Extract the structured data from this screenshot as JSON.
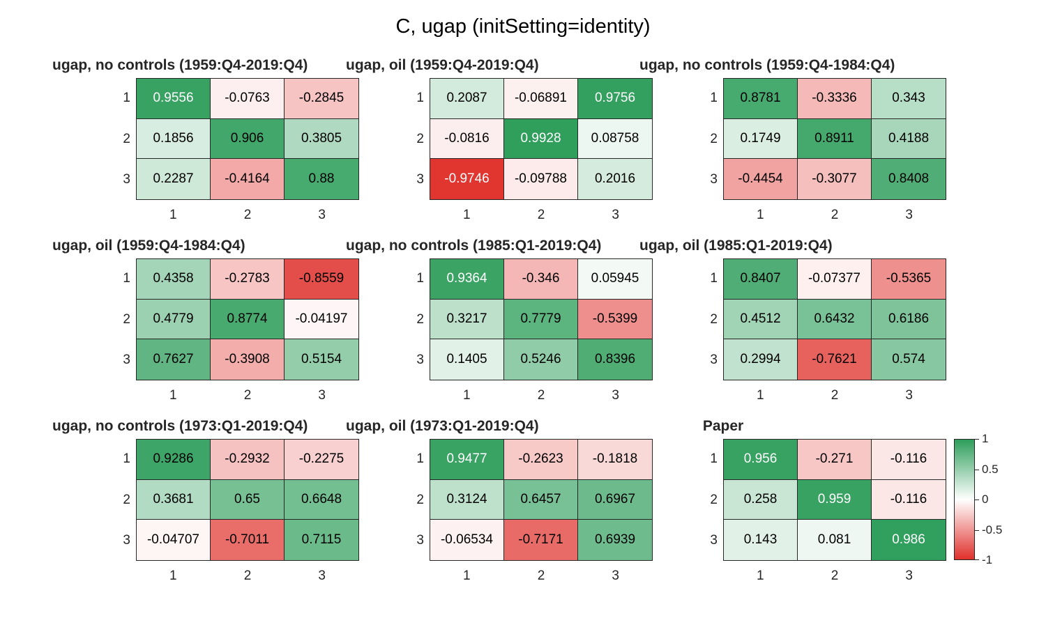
{
  "figure_title": "C, ugap (initSetting=identity)",
  "chart_data": {
    "type": "heatmap",
    "colormap": {
      "low": "#e0302b",
      "mid": "#ffffff",
      "high": "#2e9e5b",
      "range": [
        -1,
        1
      ]
    },
    "colorbar": {
      "ticks": [
        1,
        0.5,
        0,
        -0.5,
        -1
      ],
      "labels": [
        "1",
        "0.5",
        "0",
        "-0.5",
        "-1"
      ]
    },
    "row_labels": [
      "1",
      "2",
      "3"
    ],
    "col_labels": [
      "1",
      "2",
      "3"
    ],
    "panels": [
      {
        "title": "ugap, no controls (1959:Q4-2019:Q4)",
        "values": [
          [
            0.9556,
            -0.0763,
            -0.2845
          ],
          [
            0.1856,
            0.906,
            0.3805
          ],
          [
            0.2287,
            -0.4164,
            0.88
          ]
        ],
        "labels": [
          [
            "0.9556",
            "-0.0763",
            "-0.2845"
          ],
          [
            "0.1856",
            "0.906",
            "0.3805"
          ],
          [
            "0.2287",
            "-0.4164",
            "0.88"
          ]
        ]
      },
      {
        "title": "ugap, oil (1959:Q4-2019:Q4)",
        "values": [
          [
            0.2087,
            -0.06891,
            0.9756
          ],
          [
            -0.0816,
            0.9928,
            0.08758
          ],
          [
            -0.9746,
            -0.09788,
            0.2016
          ]
        ],
        "labels": [
          [
            "0.2087",
            "-0.06891",
            "0.9756"
          ],
          [
            "-0.0816",
            "0.9928",
            "0.08758"
          ],
          [
            "-0.9746",
            "-0.09788",
            "0.2016"
          ]
        ]
      },
      {
        "title": "ugap, no controls (1959:Q4-1984:Q4)",
        "values": [
          [
            0.8781,
            -0.3336,
            0.343
          ],
          [
            0.1749,
            0.8911,
            0.4188
          ],
          [
            -0.4454,
            -0.3077,
            0.8408
          ]
        ],
        "labels": [
          [
            "0.8781",
            "-0.3336",
            "0.343"
          ],
          [
            "0.1749",
            "0.8911",
            "0.4188"
          ],
          [
            "-0.4454",
            "-0.3077",
            "0.8408"
          ]
        ]
      },
      {
        "title": "ugap, oil (1959:Q4-1984:Q4)",
        "values": [
          [
            0.4358,
            -0.2783,
            -0.8559
          ],
          [
            0.4779,
            0.8774,
            -0.04197
          ],
          [
            0.7627,
            -0.3908,
            0.5154
          ]
        ],
        "labels": [
          [
            "0.4358",
            "-0.2783",
            "-0.8559"
          ],
          [
            "0.4779",
            "0.8774",
            "-0.04197"
          ],
          [
            "0.7627",
            "-0.3908",
            "0.5154"
          ]
        ]
      },
      {
        "title": "ugap, no controls (1985:Q1-2019:Q4)",
        "values": [
          [
            0.9364,
            -0.346,
            0.05945
          ],
          [
            0.3217,
            0.7779,
            -0.5399
          ],
          [
            0.1405,
            0.5246,
            0.8396
          ]
        ],
        "labels": [
          [
            "0.9364",
            "-0.346",
            "0.05945"
          ],
          [
            "0.3217",
            "0.7779",
            "-0.5399"
          ],
          [
            "0.1405",
            "0.5246",
            "0.8396"
          ]
        ]
      },
      {
        "title": "ugap, oil (1985:Q1-2019:Q4)",
        "values": [
          [
            0.8407,
            -0.07377,
            -0.5365
          ],
          [
            0.4512,
            0.6432,
            0.6186
          ],
          [
            0.2994,
            -0.7621,
            0.574
          ]
        ],
        "labels": [
          [
            "0.8407",
            "-0.07377",
            "-0.5365"
          ],
          [
            "0.4512",
            "0.6432",
            "0.6186"
          ],
          [
            "0.2994",
            "-0.7621",
            "0.574"
          ]
        ]
      },
      {
        "title": "ugap, no controls (1973:Q1-2019:Q4)",
        "values": [
          [
            0.9286,
            -0.2932,
            -0.2275
          ],
          [
            0.3681,
            0.65,
            0.6648
          ],
          [
            -0.04707,
            -0.7011,
            0.7115
          ]
        ],
        "labels": [
          [
            "0.9286",
            "-0.2932",
            "-0.2275"
          ],
          [
            "0.3681",
            "0.65",
            "0.6648"
          ],
          [
            "-0.04707",
            "-0.7011",
            "0.7115"
          ]
        ]
      },
      {
        "title": "ugap, oil (1973:Q1-2019:Q4)",
        "values": [
          [
            0.9477,
            -0.2623,
            -0.1818
          ],
          [
            0.3124,
            0.6457,
            0.6967
          ],
          [
            -0.06534,
            -0.7171,
            0.6939
          ]
        ],
        "labels": [
          [
            "0.9477",
            "-0.2623",
            "-0.1818"
          ],
          [
            "0.3124",
            "0.6457",
            "0.6967"
          ],
          [
            "-0.06534",
            "-0.7171",
            "0.6939"
          ]
        ]
      },
      {
        "title": "Paper",
        "values": [
          [
            0.956,
            -0.271,
            -0.116
          ],
          [
            0.258,
            0.959,
            -0.116
          ],
          [
            0.143,
            0.081,
            0.986
          ]
        ],
        "labels": [
          [
            "0.956",
            "-0.271",
            "-0.116"
          ],
          [
            "0.258",
            "0.959",
            "-0.116"
          ],
          [
            "0.143",
            "0.081",
            "0.986"
          ]
        ]
      }
    ]
  }
}
